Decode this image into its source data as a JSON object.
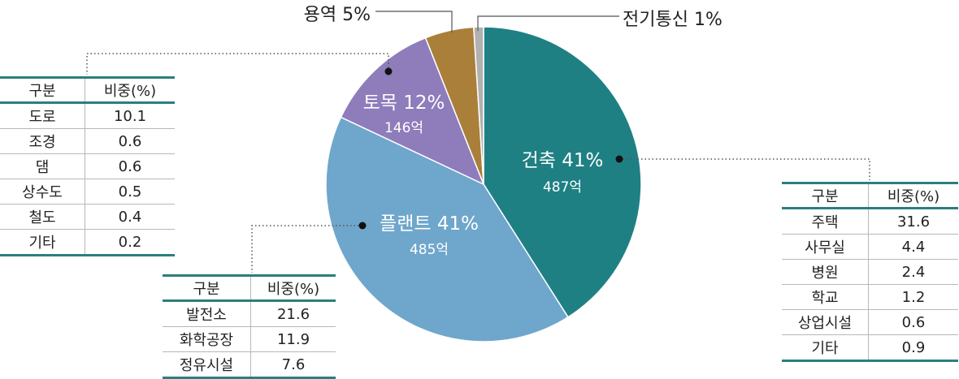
{
  "chart_data": {
    "type": "pie",
    "slices": [
      {
        "label": "건축",
        "value": 41,
        "value_label": "41%",
        "amount": "487억",
        "color": "#1f8084"
      },
      {
        "label": "플랜트",
        "value": 41,
        "value_label": "41%",
        "amount": "485억",
        "color": "#6fa6cc"
      },
      {
        "label": "토목",
        "value": 12,
        "value_label": "12%",
        "amount": "146억",
        "color": "#8e7cbb"
      },
      {
        "label": "용역",
        "value": 5,
        "value_label": "5%",
        "color": "#a97f3a"
      },
      {
        "label": "전기통신",
        "value": 1,
        "value_label": "1%",
        "color": "#b1b1b1"
      }
    ]
  },
  "tables": {
    "header": {
      "col1": "구분",
      "col2": "비중(%)"
    },
    "civil": [
      {
        "name": "도로",
        "value": "10.1"
      },
      {
        "name": "조경",
        "value": "0.6"
      },
      {
        "name": "댐",
        "value": "0.6"
      },
      {
        "name": "상수도",
        "value": "0.5"
      },
      {
        "name": "철도",
        "value": "0.4"
      },
      {
        "name": "기타",
        "value": "0.2"
      }
    ],
    "plant": [
      {
        "name": "발전소",
        "value": "21.6"
      },
      {
        "name": "화학공장",
        "value": "11.9"
      },
      {
        "name": "정유시설",
        "value": "7.6"
      }
    ],
    "building": [
      {
        "name": "주택",
        "value": "31.6"
      },
      {
        "name": "사무실",
        "value": "4.4"
      },
      {
        "name": "병원",
        "value": "2.4"
      },
      {
        "name": "학교",
        "value": "1.2"
      },
      {
        "name": "상업시설",
        "value": "0.6"
      },
      {
        "name": "기타",
        "value": "0.9"
      }
    ]
  }
}
